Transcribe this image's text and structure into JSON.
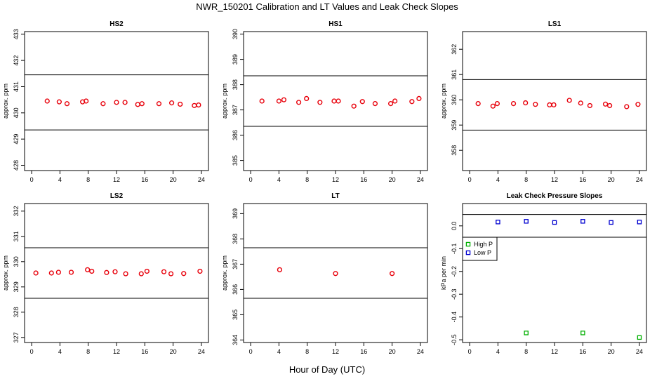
{
  "figure": {
    "title": "NWR_150201  Calibration and LT Values and Leak Check Slopes",
    "xlabel": "Hour of Day (UTC)"
  },
  "chart_data": [
    {
      "type": "scatter",
      "title": "HS2",
      "ylabel": "approx. ppm",
      "xlim": [
        -1,
        25
      ],
      "ylim": [
        427.8,
        433.1
      ],
      "xticks": [
        "0",
        "4",
        "8",
        "12",
        "16",
        "20",
        "24"
      ],
      "yticks": [
        "428",
        "429",
        "430",
        "431",
        "432",
        "433"
      ],
      "hlines": [
        431.45,
        429.35
      ],
      "series": [
        {
          "marker": "circle",
          "color": "#e8000b",
          "points": [
            [
              2.2,
              430.45
            ],
            [
              3.9,
              430.42
            ],
            [
              5.0,
              430.35
            ],
            [
              7.2,
              430.42
            ],
            [
              7.7,
              430.45
            ],
            [
              10.1,
              430.35
            ],
            [
              12.0,
              430.4
            ],
            [
              13.2,
              430.4
            ],
            [
              15.0,
              430.32
            ],
            [
              15.6,
              430.35
            ],
            [
              18.0,
              430.35
            ],
            [
              19.8,
              430.38
            ],
            [
              21.0,
              430.33
            ],
            [
              23.0,
              430.28
            ],
            [
              23.6,
              430.3
            ]
          ]
        }
      ]
    },
    {
      "type": "scatter",
      "title": "HS1",
      "ylabel": "approx. ppm",
      "xlim": [
        -1,
        25
      ],
      "ylim": [
        384.6,
        390.1
      ],
      "xticks": [
        "0",
        "4",
        "8",
        "12",
        "16",
        "20",
        "24"
      ],
      "yticks": [
        "385",
        "386",
        "387",
        "388",
        "389",
        "390"
      ],
      "hlines": [
        388.35,
        386.35
      ],
      "series": [
        {
          "marker": "circle",
          "color": "#e8000b",
          "points": [
            [
              1.6,
              387.35
            ],
            [
              4.0,
              387.35
            ],
            [
              4.7,
              387.4
            ],
            [
              6.8,
              387.3
            ],
            [
              7.9,
              387.45
            ],
            [
              9.8,
              387.3
            ],
            [
              11.8,
              387.35
            ],
            [
              12.4,
              387.35
            ],
            [
              14.6,
              387.15
            ],
            [
              15.8,
              387.33
            ],
            [
              17.6,
              387.25
            ],
            [
              19.8,
              387.25
            ],
            [
              20.4,
              387.35
            ],
            [
              22.8,
              387.33
            ],
            [
              23.8,
              387.45
            ]
          ]
        }
      ]
    },
    {
      "type": "scatter",
      "title": "LS1",
      "ylabel": "approx. ppm",
      "xlim": [
        -1,
        25
      ],
      "ylim": [
        357.2,
        362.7
      ],
      "xticks": [
        "0",
        "4",
        "8",
        "12",
        "16",
        "20",
        "24"
      ],
      "yticks": [
        "358",
        "359",
        "360",
        "361",
        "362"
      ],
      "hlines": [
        360.8,
        358.8
      ],
      "series": [
        {
          "marker": "circle",
          "color": "#e8000b",
          "points": [
            [
              1.2,
              359.85
            ],
            [
              3.3,
              359.75
            ],
            [
              3.9,
              359.85
            ],
            [
              6.2,
              359.85
            ],
            [
              7.9,
              359.88
            ],
            [
              9.3,
              359.82
            ],
            [
              11.3,
              359.8
            ],
            [
              11.9,
              359.8
            ],
            [
              14.1,
              359.98
            ],
            [
              15.7,
              359.87
            ],
            [
              17.0,
              359.77
            ],
            [
              19.2,
              359.83
            ],
            [
              19.8,
              359.77
            ],
            [
              22.2,
              359.73
            ],
            [
              23.8,
              359.82
            ]
          ]
        }
      ]
    },
    {
      "type": "scatter",
      "title": "LS2",
      "ylabel": "approx. ppm",
      "xlim": [
        -1,
        25
      ],
      "ylim": [
        326.8,
        332.3
      ],
      "xticks": [
        "0",
        "4",
        "8",
        "12",
        "16",
        "20",
        "24"
      ],
      "yticks": [
        "327",
        "328",
        "329",
        "330",
        "331",
        "332"
      ],
      "hlines": [
        330.55,
        328.55
      ],
      "series": [
        {
          "marker": "circle",
          "color": "#e8000b",
          "points": [
            [
              0.6,
              329.55
            ],
            [
              2.8,
              329.55
            ],
            [
              3.8,
              329.58
            ],
            [
              5.6,
              329.58
            ],
            [
              7.9,
              329.68
            ],
            [
              8.5,
              329.62
            ],
            [
              10.6,
              329.57
            ],
            [
              11.8,
              329.6
            ],
            [
              13.3,
              329.52
            ],
            [
              15.5,
              329.52
            ],
            [
              16.3,
              329.62
            ],
            [
              18.7,
              329.6
            ],
            [
              19.7,
              329.52
            ],
            [
              21.5,
              329.53
            ],
            [
              23.8,
              329.62
            ]
          ]
        }
      ]
    },
    {
      "type": "scatter",
      "title": "LT",
      "ylabel": "approx. ppm",
      "xlim": [
        -1,
        25
      ],
      "ylim": [
        363.9,
        369.4
      ],
      "xticks": [
        "0",
        "4",
        "8",
        "12",
        "16",
        "20",
        "24"
      ],
      "yticks": [
        "364",
        "365",
        "366",
        "367",
        "368",
        "369"
      ],
      "hlines": [
        367.65,
        365.65
      ],
      "series": [
        {
          "marker": "circle",
          "color": "#e8000b",
          "points": [
            [
              4.1,
              366.78
            ],
            [
              12.0,
              366.63
            ],
            [
              20.0,
              366.63
            ]
          ]
        }
      ]
    },
    {
      "type": "scatter",
      "title": "Leak Check Pressure Slopes",
      "ylabel": "kPa per min",
      "xlim": [
        -1,
        25
      ],
      "ylim": [
        -0.512,
        0.098
      ],
      "xticks": [
        "0",
        "4",
        "8",
        "12",
        "16",
        "20",
        "24"
      ],
      "yticks": [
        "0.0",
        "-0.1",
        "-0.2",
        "-0.3",
        "-0.4",
        "-0.5"
      ],
      "hlines": [
        0.05,
        -0.05
      ],
      "legend_position": "top-left",
      "series": [
        {
          "name": "High P",
          "marker": "square",
          "color": "#00b000",
          "points": [
            [
              8.0,
              -0.47
            ],
            [
              16.0,
              -0.47
            ],
            [
              24.0,
              -0.49
            ]
          ]
        },
        {
          "name": "Low P",
          "marker": "square",
          "color": "#0000d0",
          "points": [
            [
              4.0,
              0.017
            ],
            [
              8.0,
              0.02
            ],
            [
              12.0,
              0.015
            ],
            [
              16.0,
              0.02
            ],
            [
              20.0,
              0.015
            ],
            [
              24.0,
              0.017
            ]
          ]
        }
      ]
    }
  ]
}
